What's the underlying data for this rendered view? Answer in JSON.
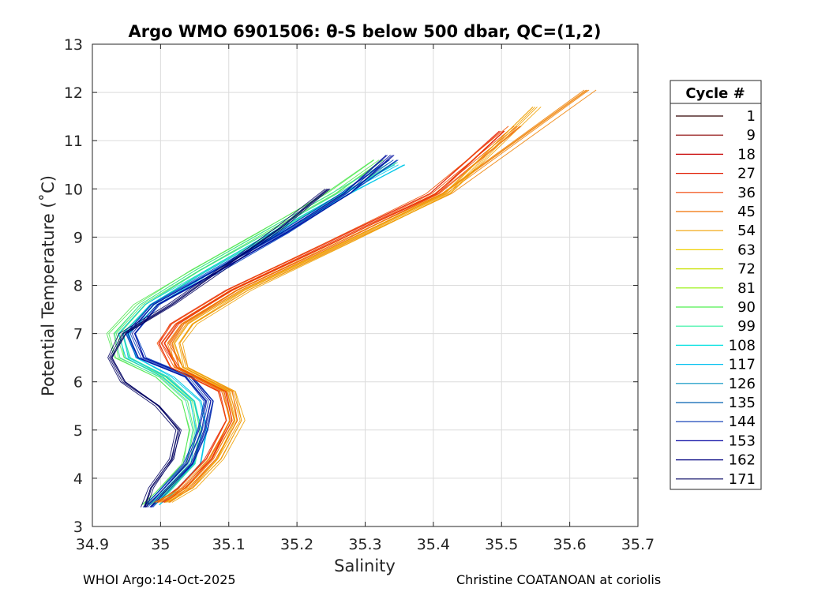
{
  "chart_data": {
    "type": "line",
    "title": "Argo WMO 6901506: θ-S below 500 dbar,  QC=(1,2)",
    "xlabel": "Salinity",
    "ylabel": "Potential Temperature (˚C)",
    "xlim": [
      34.9,
      35.7
    ],
    "ylim": [
      3,
      13
    ],
    "xticks": [
      "34.9",
      "35",
      "35.1",
      "35.2",
      "35.3",
      "35.4",
      "35.5",
      "35.6",
      "35.7"
    ],
    "yticks": [
      "3",
      "4",
      "5",
      "6",
      "7",
      "8",
      "9",
      "10",
      "11",
      "12",
      "13"
    ],
    "grid": true,
    "legend": {
      "title": "Cycle #",
      "placement": "right",
      "entries": [
        "1",
        "9",
        "18",
        "27",
        "36",
        "45",
        "54",
        "63",
        "72",
        "81",
        "90",
        "99",
        "108",
        "117",
        "126",
        "135",
        "144",
        "153",
        "162",
        "171"
      ],
      "colors": [
        "#300000",
        "#8a0000",
        "#c80000",
        "#e01a00",
        "#f04000",
        "#f07000",
        "#f0a000",
        "#f0d000",
        "#c8e000",
        "#90f000",
        "#50f050",
        "#30f0a0",
        "#00e0e0",
        "#00c0f0",
        "#0090c0",
        "#0060b0",
        "#0030b0",
        "#0000a0",
        "#000080",
        "#000060"
      ]
    },
    "series": [
      {
        "group": "green-cyan",
        "color": "#50e850",
        "x": [
          34.98,
          35.0,
          35.04,
          35.05,
          35.04,
          35.0,
          34.94,
          34.93,
          34.97,
          35.05,
          35.15,
          35.25,
          35.32
        ],
        "y": [
          3.45,
          3.7,
          4.3,
          5.0,
          5.6,
          6.1,
          6.5,
          7.0,
          7.6,
          8.3,
          9.1,
          9.9,
          10.6
        ]
      },
      {
        "group": "green-cyan",
        "color": "#30e0a0",
        "x": [
          34.985,
          35.005,
          35.045,
          35.055,
          35.045,
          35.005,
          34.95,
          34.94,
          34.98,
          35.06,
          35.16,
          35.26,
          35.34
        ],
        "y": [
          3.45,
          3.7,
          4.3,
          5.0,
          5.6,
          6.1,
          6.5,
          7.0,
          7.6,
          8.3,
          9.1,
          9.9,
          10.55
        ]
      },
      {
        "group": "green-cyan",
        "color": "#00c8e8",
        "x": [
          34.99,
          35.01,
          35.05,
          35.06,
          35.05,
          35.01,
          34.955,
          34.945,
          34.985,
          35.07,
          35.17,
          35.27,
          35.35
        ],
        "y": [
          3.45,
          3.7,
          4.3,
          5.0,
          5.6,
          6.1,
          6.5,
          7.0,
          7.6,
          8.3,
          9.1,
          9.9,
          10.5
        ]
      },
      {
        "group": "blue",
        "color": "#0040c0",
        "x": [
          34.98,
          35.0,
          35.04,
          35.06,
          35.07,
          35.04,
          34.97,
          34.955,
          34.99,
          35.08,
          35.18,
          35.27,
          35.34
        ],
        "y": [
          3.4,
          3.7,
          4.3,
          5.0,
          5.6,
          6.1,
          6.5,
          7.0,
          7.6,
          8.3,
          9.1,
          9.9,
          10.6
        ]
      },
      {
        "group": "blue",
        "color": "#0010a0",
        "x": [
          34.985,
          35.005,
          35.045,
          35.065,
          35.075,
          35.045,
          34.975,
          34.96,
          34.995,
          35.085,
          35.185,
          35.275,
          35.34
        ],
        "y": [
          3.4,
          3.7,
          4.3,
          5.0,
          5.6,
          6.1,
          6.5,
          7.0,
          7.6,
          8.3,
          9.1,
          9.9,
          10.7
        ]
      },
      {
        "group": "dark",
        "color": "#000060",
        "x": [
          34.98,
          34.99,
          35.02,
          35.03,
          35.0,
          34.95,
          34.93,
          34.95,
          35.02,
          35.1,
          35.18,
          35.25
        ],
        "y": [
          3.4,
          3.8,
          4.4,
          5.0,
          5.5,
          6.0,
          6.5,
          7.0,
          7.6,
          8.4,
          9.2,
          10.0
        ]
      },
      {
        "group": "red-orange",
        "color": "#e82000",
        "x": [
          35.0,
          35.03,
          35.07,
          35.1,
          35.09,
          35.02,
          35.0,
          35.02,
          35.1,
          35.25,
          35.4,
          35.5
        ],
        "y": [
          3.5,
          3.8,
          4.4,
          5.2,
          5.8,
          6.3,
          6.8,
          7.2,
          7.9,
          8.9,
          9.9,
          11.2
        ]
      },
      {
        "group": "red-orange",
        "color": "#f05000",
        "x": [
          35.005,
          35.035,
          35.075,
          35.105,
          35.095,
          35.025,
          35.005,
          35.025,
          35.105,
          35.255,
          35.4,
          35.52
        ],
        "y": [
          3.5,
          3.8,
          4.4,
          5.2,
          5.8,
          6.3,
          6.8,
          7.2,
          7.9,
          8.9,
          9.9,
          11.3
        ]
      },
      {
        "group": "orange",
        "color": "#f08000",
        "x": [
          35.0,
          35.04,
          35.08,
          35.11,
          35.1,
          35.03,
          35.02,
          35.04,
          35.12,
          35.27,
          35.42,
          35.63
        ],
        "y": [
          3.5,
          3.8,
          4.4,
          5.2,
          5.8,
          6.3,
          6.8,
          7.2,
          7.9,
          8.9,
          9.9,
          12.05
        ]
      },
      {
        "group": "orange",
        "color": "#f0a000",
        "x": [
          35.01,
          35.045,
          35.085,
          35.115,
          35.105,
          35.035,
          35.025,
          35.045,
          35.125,
          35.275,
          35.42,
          35.55
        ],
        "y": [
          3.5,
          3.8,
          4.4,
          5.2,
          5.8,
          6.3,
          6.8,
          7.2,
          7.9,
          8.9,
          9.9,
          11.7
        ]
      }
    ]
  },
  "footer": {
    "left": "WHOI Argo:14-Oct-2025",
    "right": "Christine COATANOAN at coriolis"
  }
}
